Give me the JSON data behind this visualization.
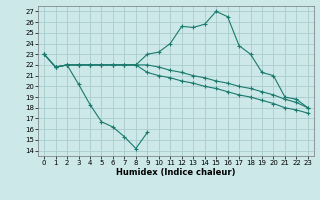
{
  "title": "",
  "xlabel": "Humidex (Indice chaleur)",
  "background_color": "#cce8e8",
  "grid_color": "#aacccc",
  "line_color": "#1a7a6e",
  "xlim": [
    -0.5,
    23.5
  ],
  "ylim": [
    13.5,
    27.5
  ],
  "yticks": [
    14,
    15,
    16,
    17,
    18,
    19,
    20,
    21,
    22,
    23,
    24,
    25,
    26,
    27
  ],
  "xticks": [
    0,
    1,
    2,
    3,
    4,
    5,
    6,
    7,
    8,
    9,
    10,
    11,
    12,
    13,
    14,
    15,
    16,
    17,
    18,
    19,
    20,
    21,
    22,
    23
  ],
  "line1_x": [
    0,
    1,
    2,
    3,
    4,
    5,
    6,
    7,
    8,
    9,
    10,
    11,
    12,
    13,
    14,
    15,
    16,
    17,
    18,
    19,
    20,
    21,
    22,
    23
  ],
  "line1_y": [
    23.0,
    21.8,
    22.0,
    22.0,
    22.0,
    22.0,
    22.0,
    22.0,
    22.0,
    23.0,
    23.2,
    24.0,
    25.6,
    25.5,
    25.8,
    27.0,
    26.5,
    23.8,
    23.0,
    21.3,
    21.0,
    19.0,
    18.8,
    18.0
  ],
  "line2_x": [
    0,
    1,
    2,
    3,
    4,
    5,
    6,
    7,
    8,
    9,
    10,
    11,
    12,
    13,
    14,
    15,
    16,
    17,
    18,
    19,
    20,
    21,
    22,
    23
  ],
  "line2_y": [
    23.0,
    21.8,
    22.0,
    22.0,
    22.0,
    22.0,
    22.0,
    22.0,
    22.0,
    22.0,
    21.8,
    21.5,
    21.3,
    21.0,
    20.8,
    20.5,
    20.3,
    20.0,
    19.8,
    19.5,
    19.2,
    18.8,
    18.5,
    18.0
  ],
  "line3_x": [
    0,
    1,
    2,
    3,
    4,
    5,
    6,
    7,
    8,
    9,
    10,
    11,
    12,
    13,
    14,
    15,
    16,
    17,
    18,
    19,
    20,
    21,
    22,
    23
  ],
  "line3_y": [
    23.0,
    21.8,
    22.0,
    22.0,
    22.0,
    22.0,
    22.0,
    22.0,
    22.0,
    21.3,
    21.0,
    20.8,
    20.5,
    20.3,
    20.0,
    19.8,
    19.5,
    19.2,
    19.0,
    18.7,
    18.4,
    18.0,
    17.8,
    17.5
  ],
  "line4_x": [
    1,
    2,
    3,
    4,
    5,
    6,
    7,
    8,
    9
  ],
  "line4_y": [
    21.8,
    22.0,
    20.2,
    18.3,
    16.7,
    16.2,
    15.3,
    14.2,
    15.7
  ]
}
